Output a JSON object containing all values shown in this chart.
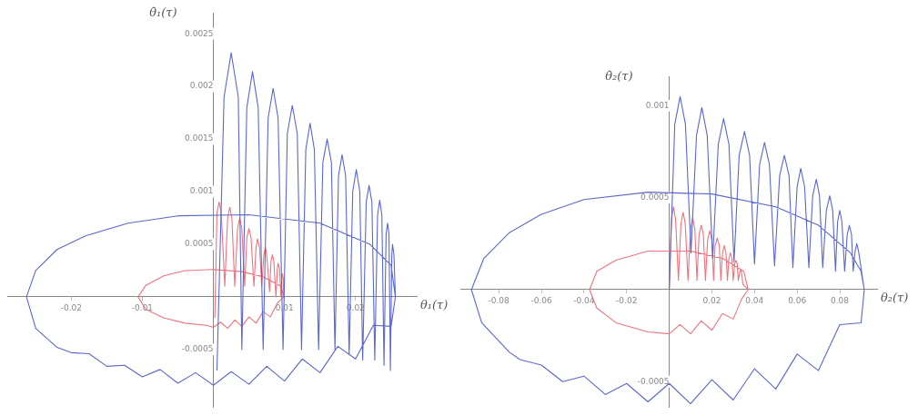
{
  "chart_data": [
    {
      "type": "line",
      "xlabel": "θ₁(τ)",
      "ylabel": "θ̇₁(τ)",
      "xlim": [
        -0.029,
        0.0286
      ],
      "ylim": [
        -0.00105,
        0.0027
      ],
      "xticks": [
        -0.02,
        -0.01,
        0.01,
        0.02
      ],
      "yticks": [
        -0.0005,
        0.0005,
        0.001,
        0.0015,
        0.002,
        0.0025
      ],
      "grid": false,
      "series": [
        {
          "color": "#5b68c8",
          "x": [
            0.0005,
            0.0015,
            0.0025,
            0.0035,
            0.004,
            0.0047,
            0.0055,
            0.0063,
            0.007,
            0.0077,
            0.0084,
            0.0091,
            0.0098,
            0.0104,
            0.0111,
            0.0118,
            0.0124,
            0.013,
            0.0136,
            0.0142,
            0.0148,
            0.0154,
            0.016,
            0.0166,
            0.0171,
            0.0176,
            0.0181,
            0.0186,
            0.0191,
            0.0196,
            0.0201,
            0.0206,
            0.021,
            0.0215,
            0.0219,
            0.0223,
            0.0227,
            0.0231,
            0.0234,
            0.0237,
            0.024,
            0.0243,
            0.0245,
            0.0247,
            0.0249,
            0.0251,
            0.0252,
            0.0254,
            0.0256,
            0.025,
            0.022,
            0.015,
            0.005,
            -0.005,
            -0.012,
            -0.018,
            -0.022,
            -0.025,
            -0.0263,
            -0.025,
            -0.022,
            -0.02,
            -0.0175,
            -0.015,
            -0.0125,
            -0.01,
            -0.0075,
            -0.005,
            -0.0025,
            0,
            0.0025,
            0.005,
            0.0075,
            0.01,
            0.0125,
            0.015,
            0.0175,
            0.02,
            0.0225,
            0.025,
            0.0256
          ],
          "values": [
            -0.0007,
            0.0019,
            0.00232,
            0.0019,
            -0.0005,
            0.0018,
            0.00214,
            0.0018,
            -0.0005,
            0.0017,
            0.00198,
            0.0017,
            -0.0005,
            0.00155,
            0.00182,
            0.00155,
            -0.0005,
            0.0014,
            0.00165,
            0.0014,
            -0.0005,
            0.00128,
            0.0015,
            0.00128,
            -0.0005,
            0.00115,
            0.00135,
            0.00115,
            -0.00055,
            0.001,
            0.00121,
            0.001,
            -0.0006,
            0.0009,
            0.00106,
            0.0009,
            -0.0006,
            0.00078,
            0.00092,
            0.00078,
            -0.00065,
            0.0006,
            0.0007,
            0.0006,
            -0.0007,
            0.0004,
            0.0005,
            0.0004,
            0,
            0.0003,
            0.0005,
            0.0007,
            0.00078,
            0.00077,
            0.0007,
            0.00058,
            0.00045,
            0.00025,
            0,
            -0.0003,
            -0.00048,
            -0.00053,
            -0.00054,
            -0.00066,
            -0.00065,
            -0.00076,
            -0.00069,
            -0.00082,
            -0.00072,
            -0.00084,
            -0.00071,
            -0.00083,
            -0.00066,
            -0.0008,
            -0.00059,
            -0.00072,
            -0.00047,
            -0.00059,
            -0.00027,
            -0.00028,
            0
          ]
        },
        {
          "color": "#ea7580",
          "x": [
            0.0002,
            0.0005,
            0.0008,
            0.0011,
            0.0016,
            0.002,
            0.0023,
            0.0026,
            0.003,
            0.0034,
            0.0037,
            0.004,
            0.0044,
            0.0047,
            0.005,
            0.0053,
            0.0057,
            0.006,
            0.0062,
            0.0065,
            0.0068,
            0.0071,
            0.0073,
            0.0075,
            0.0079,
            0.0081,
            0.0083,
            0.0085,
            0.0088,
            0.009,
            0.0091,
            0.0093,
            0.0095,
            0.0096,
            0.0097,
            0.0098,
            0.0099,
            0.0095,
            0.007,
            0.004,
            0,
            -0.004,
            -0.007,
            -0.0095,
            -0.0106,
            -0.0095,
            -0.007,
            -0.004,
            -0.001,
            0,
            0.001,
            0.002,
            0.003,
            0.004,
            0.005,
            0.006,
            0.007,
            0.008,
            0.009,
            0.0099
          ],
          "values": [
            -0.0002,
            0.0008,
            0.0009,
            0.0008,
            0.0001,
            0.00075,
            0.00085,
            0.00075,
            0.0001,
            0.00065,
            0.00075,
            0.00065,
            0.0001,
            0.00056,
            0.00065,
            0.00056,
            0.0001,
            0.00047,
            0.00055,
            0.00047,
            0.0001,
            0.0004,
            0.00047,
            0.0004,
            5e-05,
            0.00034,
            0.0004,
            0.00034,
            0,
            0.00027,
            0.00032,
            0.00027,
            0,
            0.00018,
            0.00022,
            0.00018,
            0,
            0.0001,
            0.00019,
            0.00024,
            0.00026,
            0.00025,
            0.0002,
            0.00011,
            0,
            -0.00012,
            -0.0002,
            -0.00025,
            -0.00027,
            -0.00029,
            -0.00024,
            -0.0003,
            -0.00022,
            -0.00028,
            -0.00019,
            -0.00025,
            -0.00014,
            -0.00019,
            -6e-05,
            0
          ]
        }
      ]
    },
    {
      "type": "line",
      "xlabel": "θ₂(τ)",
      "ylabel": "θ̇₂(τ)",
      "xlim": [
        -0.098,
        0.0975
      ],
      "ylim": [
        -0.00064,
        0.00116
      ],
      "xticks": [
        -0.08,
        -0.06,
        -0.04,
        -0.02,
        0.02,
        0.04,
        0.06,
        0.08
      ],
      "yticks": [
        -0.0005,
        0.0005,
        0.001
      ],
      "grid": false,
      "series": [
        {
          "color": "#5b68c8",
          "x": [
            0,
            0.0026,
            0.0051,
            0.0076,
            0.0102,
            0.0128,
            0.0153,
            0.0178,
            0.0204,
            0.023,
            0.0255,
            0.028,
            0.0304,
            0.0328,
            0.0353,
            0.0377,
            0.04,
            0.0424,
            0.0447,
            0.047,
            0.0494,
            0.0518,
            0.054,
            0.0562,
            0.058,
            0.06,
            0.0617,
            0.0635,
            0.0655,
            0.0673,
            0.069,
            0.0705,
            0.072,
            0.0737,
            0.0753,
            0.0767,
            0.078,
            0.079,
            0.08,
            0.081,
            0.0823,
            0.0835,
            0.0845,
            0.0855,
            0.0863,
            0.0872,
            0.088,
            0.0888,
            0.0915,
            0.09,
            0.085,
            0.07,
            0.05,
            0.02,
            -0.01,
            -0.04,
            -0.06,
            -0.075,
            -0.087,
            -0.0928,
            -0.088,
            -0.075,
            -0.07,
            -0.06,
            -0.05,
            -0.04,
            -0.03,
            -0.02,
            -0.01,
            0,
            0.01,
            0.02,
            0.03,
            0.04,
            0.05,
            0.06,
            0.07,
            0.08,
            0.09,
            0.0915
          ],
          "values": [
            0,
            0.0009,
            0.00105,
            0.0009,
            0.0002,
            0.00084,
            0.00099,
            0.00084,
            0.00017,
            0.00079,
            0.00093,
            0.00079,
            0.00015,
            0.00073,
            0.00086,
            0.00073,
            0.00014,
            0.00068,
            0.0008,
            0.00068,
            0.00013,
            0.00062,
            0.00073,
            0.00062,
            0.00012,
            0.00056,
            0.00066,
            0.00056,
            0.00012,
            0.00051,
            0.0006,
            0.00051,
            0.00012,
            0.00043,
            0.00051,
            0.00043,
            0.0001,
            0.00037,
            0.00043,
            0.00037,
            0.0001,
            0.0003,
            0.00035,
            0.0003,
            0.0001,
            0.00021,
            0.00025,
            0.00021,
            0,
            0.0001,
            0.0002,
            0.00035,
            0.00045,
            0.00052,
            0.00053,
            0.00049,
            0.00041,
            0.00031,
            0.00017,
            0,
            -0.00018,
            -0.00034,
            -0.00038,
            -0.00041,
            -0.0005,
            -0.00047,
            -0.00057,
            -0.00051,
            -0.00061,
            -0.00051,
            -0.00062,
            -0.00049,
            -0.0006,
            -0.00043,
            -0.00054,
            -0.00035,
            -0.00044,
            -0.00019,
            -0.00018,
            0
          ]
        },
        {
          "color": "#ea7580",
          "x": [
            0,
            0.001,
            0.002,
            0.003,
            0.0043,
            0.0055,
            0.0065,
            0.0075,
            0.0088,
            0.01,
            0.011,
            0.012,
            0.013,
            0.014,
            0.015,
            0.016,
            0.017,
            0.018,
            0.019,
            0.02,
            0.0208,
            0.0215,
            0.0225,
            0.0235,
            0.0242,
            0.025,
            0.0258,
            0.0266,
            0.0273,
            0.028,
            0.0287,
            0.0294,
            0.03,
            0.0307,
            0.0313,
            0.0319,
            0.0324,
            0.033,
            0.0335,
            0.034,
            0.0345,
            0.037,
            0.035,
            0.025,
            0.01,
            -0.01,
            -0.025,
            -0.034,
            -0.0374,
            -0.034,
            -0.025,
            -0.01,
            0,
            0.005,
            0.01,
            0.015,
            0.02,
            0.025,
            0.03,
            0.034,
            0.037
          ],
          "values": [
            0,
            0.00038,
            0.00045,
            0.00038,
            5e-05,
            0.00036,
            0.00042,
            0.00036,
            5e-05,
            0.00033,
            0.00039,
            0.00033,
            5e-05,
            0.0003,
            0.00035,
            0.0003,
            5e-05,
            0.00027,
            0.00032,
            0.00027,
            5e-05,
            0.00024,
            0.00028,
            0.00024,
            5e-05,
            0.0002,
            0.00024,
            0.0002,
            5e-05,
            0.00017,
            0.0002,
            0.00017,
            5e-05,
            0.00014,
            0.00016,
            0.00014,
            5e-05,
            9e-05,
            0.00011,
            9e-05,
            3e-05,
            0,
            0.0001,
            0.00017,
            0.00021,
            0.00021,
            0.00016,
            0.0001,
            0,
            -0.0001,
            -0.00018,
            -0.00023,
            -0.00024,
            -0.00019,
            -0.00024,
            -0.00017,
            -0.00022,
            -0.00013,
            -0.00016,
            -5e-05,
            0
          ]
        }
      ]
    }
  ]
}
